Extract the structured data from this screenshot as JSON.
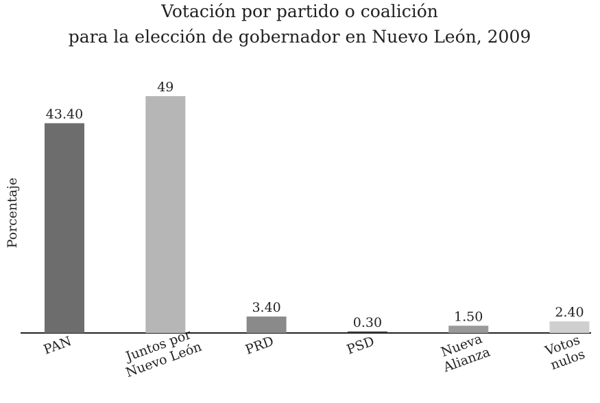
{
  "chart_data": {
    "type": "bar",
    "title": "Votación por partido o coalición\npara la elección de gobernador en Nuevo León, 2009",
    "ylabel": "Porcentaje",
    "categories": [
      "PAN",
      "Juntos por\nNuevo León",
      "PRD",
      "PSD",
      "Nueva\nAlianza",
      "Votos\nnulos"
    ],
    "values": [
      43.4,
      49,
      3.4,
      0.3,
      1.5,
      2.4
    ],
    "value_labels": [
      "43.40",
      "49",
      "3.40",
      "0.30",
      "1.50",
      "2.40"
    ],
    "colors": [
      "#6d6d6d",
      "#b5b6b5",
      "#8a8a8a",
      "#333333",
      "#999999",
      "#cfcfcf"
    ],
    "ylim": [
      0,
      50
    ]
  }
}
